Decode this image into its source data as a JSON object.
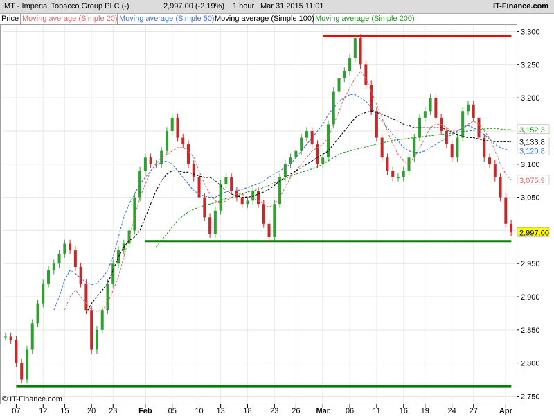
{
  "header": {
    "symbol": "IMT - Imperial Tobacco Group PLC (-)",
    "last": "2,997.00 (-2.19%)",
    "interval": "1 hour",
    "datetime": "Mar 31 2015 11:01",
    "brand": "IT-Finance.com"
  },
  "legend": [
    {
      "label": "Price",
      "color": "#000000"
    },
    {
      "label": "Moving average (Simple 20)",
      "color": "#e06666"
    },
    {
      "label": "Moving average (Simple 50)",
      "color": "#3a6fd8"
    },
    {
      "label": "Moving average (Simple 100)",
      "color": "#000000"
    },
    {
      "label": "Moving average (Simple 200)",
      "color": "#1a9a1a"
    }
  ],
  "copyright": "© IT-Finance.com",
  "chart_data": {
    "type": "line",
    "ylim": [
      2740,
      3310
    ],
    "y_ticks": [
      "2,750",
      "2,800",
      "2,850",
      "2,900",
      "2,950",
      "3,000",
      "3,050",
      "3,100",
      "3,150",
      "3,200",
      "3,250",
      "3,300"
    ],
    "y_tick_values": [
      2750,
      2800,
      2850,
      2900,
      2950,
      3000,
      3050,
      3100,
      3150,
      3200,
      3250,
      3300
    ],
    "x_ticks": [
      "07",
      "12",
      "15",
      "20",
      "23",
      "Feb",
      "05",
      "10",
      "13",
      "18",
      "23",
      "26",
      "Mar",
      "06",
      "11",
      "16",
      "19",
      "24",
      "27",
      "Apr"
    ],
    "x_tick_pos": [
      2,
      7,
      11,
      16,
      20,
      26,
      31,
      36,
      40,
      45,
      50,
      54,
      59,
      64,
      69,
      74,
      78,
      83,
      87,
      93
    ],
    "x_count": 95,
    "x_tick_major": [
      "Feb",
      "Mar",
      "Apr"
    ],
    "price": [
      2840,
      2835,
      2800,
      2775,
      2820,
      2860,
      2890,
      2920,
      2940,
      2950,
      2965,
      2980,
      2970,
      2945,
      2920,
      2880,
      2820,
      2850,
      2880,
      2920,
      2950,
      2970,
      2980,
      3000,
      3050,
      3090,
      3110,
      3100,
      3100,
      3120,
      3150,
      3170,
      3140,
      3130,
      3100,
      3080,
      3050,
      3020,
      2995,
      3030,
      3070,
      3080,
      3060,
      3050,
      3040,
      3045,
      3060,
      3040,
      3010,
      2990,
      3040,
      3080,
      3100,
      3110,
      3120,
      3140,
      3150,
      3130,
      3100,
      3110,
      3160,
      3210,
      3230,
      3240,
      3260,
      3290,
      3250,
      3220,
      3180,
      3140,
      3110,
      3090,
      3080,
      3080,
      3090,
      3110,
      3140,
      3170,
      3180,
      3200,
      3170,
      3150,
      3130,
      3110,
      3140,
      3180,
      3190,
      3170,
      3140,
      3110,
      3100,
      3080,
      3050,
      3010,
      2997
    ],
    "series": [
      {
        "name": "Moving average (Simple 20)",
        "color": "#e06666",
        "values": [
          null,
          null,
          null,
          null,
          null,
          null,
          null,
          null,
          null,
          null,
          null,
          2880,
          2900,
          2910,
          2900,
          2890,
          2880,
          2878,
          2880,
          2890,
          2910,
          2930,
          2960,
          2990,
          3020,
          3050,
          3070,
          3090,
          3100,
          3110,
          3115,
          3120,
          3125,
          3125,
          3120,
          3110,
          3090,
          3070,
          3055,
          3045,
          3040,
          3045,
          3050,
          3055,
          3055,
          3050,
          3048,
          3045,
          3040,
          3035,
          3040,
          3050,
          3065,
          3080,
          3090,
          3100,
          3110,
          3120,
          3125,
          3130,
          3140,
          3160,
          3180,
          3200,
          3215,
          3230,
          3240,
          3230,
          3210,
          3190,
          3170,
          3150,
          3130,
          3115,
          3105,
          3100,
          3110,
          3125,
          3140,
          3155,
          3160,
          3160,
          3155,
          3150,
          3150,
          3155,
          3160,
          3165,
          3160,
          3150,
          3140,
          3120,
          3100,
          3085,
          3075.9
        ]
      },
      {
        "name": "Moving average (Simple 50)",
        "color": "#3a6fd8",
        "values": [
          null,
          null,
          null,
          null,
          null,
          null,
          null,
          null,
          null,
          2880,
          2900,
          2925,
          2940,
          2935,
          2928,
          2922,
          2918,
          2920,
          2928,
          2940,
          2960,
          2990,
          3020,
          3040,
          3055,
          3070,
          3080,
          3090,
          3098,
          3103,
          3105,
          3100,
          3090,
          3080,
          3070,
          3060,
          3055,
          3052,
          3050,
          3050,
          3055,
          3058,
          3060,
          3060,
          3062,
          3065,
          3068,
          3070,
          3075,
          3080,
          3085,
          3090,
          3095,
          3100,
          3110,
          3120,
          3130,
          3140,
          3150,
          3160,
          3175,
          3185,
          3195,
          3200,
          3205,
          3205,
          3200,
          3195,
          3185,
          3175,
          3165,
          3155,
          3145,
          3135,
          3125,
          3120,
          3118,
          3118,
          3120,
          3125,
          3130,
          3135,
          3140,
          3145,
          3150,
          3155,
          3158,
          3155,
          3150,
          3145,
          3138,
          3130,
          3125,
          3122,
          3120.8
        ]
      },
      {
        "name": "Moving average (Simple 100)",
        "color": "#000000",
        "values": [
          null,
          null,
          null,
          null,
          null,
          null,
          null,
          null,
          null,
          null,
          null,
          null,
          null,
          null,
          null,
          2875,
          2890,
          2900,
          2910,
          2920,
          2940,
          2960,
          2975,
          2985,
          2990,
          3000,
          3020,
          3040,
          3060,
          3075,
          3085,
          3090,
          3090,
          3088,
          3088,
          3085,
          3082,
          3080,
          3080,
          3075,
          3068,
          3060,
          3055,
          3052,
          3050,
          3050,
          3052,
          3055,
          3058,
          3062,
          3068,
          3075,
          3080,
          3085,
          3090,
          3095,
          3100,
          3105,
          3110,
          3115,
          3120,
          3130,
          3140,
          3150,
          3160,
          3170,
          3175,
          3178,
          3180,
          3178,
          3175,
          3172,
          3168,
          3165,
          3160,
          3158,
          3155,
          3155,
          3155,
          3155,
          3155,
          3155,
          3152,
          3148,
          3145,
          3142,
          3140,
          3140,
          3138,
          3136,
          3135,
          3134,
          3134,
          3134,
          3133.8
        ]
      },
      {
        "name": "Moving average (Simple 200)",
        "color": "#1a9a1a",
        "values": [
          null,
          null,
          null,
          null,
          null,
          null,
          null,
          null,
          null,
          null,
          null,
          null,
          null,
          null,
          null,
          null,
          null,
          null,
          null,
          null,
          null,
          null,
          null,
          null,
          null,
          null,
          null,
          null,
          2975,
          2985,
          2995,
          3005,
          3015,
          3022,
          3028,
          3032,
          3035,
          3038,
          3040,
          3042,
          3045,
          3048,
          3050,
          3052,
          3055,
          3058,
          3060,
          3062,
          3065,
          3068,
          3072,
          3075,
          3078,
          3082,
          3085,
          3088,
          3090,
          3093,
          3096,
          3100,
          3105,
          3110,
          3115,
          3118,
          3120,
          3122,
          3124,
          3126,
          3128,
          3130,
          3132,
          3134,
          3136,
          3137,
          3138,
          3139,
          3140,
          3141,
          3142,
          3143,
          3144,
          3145,
          3146,
          3147,
          3148,
          3149,
          3150,
          3151,
          3152,
          3153,
          3154,
          3154,
          3153,
          3152,
          3152.3
        ]
      }
    ],
    "horizontal_lines": [
      {
        "value": 3293,
        "from": 59,
        "to": 93,
        "color": "#ff0000"
      },
      {
        "value": 2984,
        "from": 26,
        "to": 93,
        "color": "#008000"
      },
      {
        "value": 2765,
        "from": 2,
        "to": 93,
        "color": "#008000"
      }
    ],
    "last_labels": [
      {
        "text": "3,152.3",
        "value": 3152.3,
        "color": "#1a9a1a",
        "bg": "#ffffff"
      },
      {
        "text": "3,133.8",
        "value": 3133.8,
        "color": "#000000",
        "bg": "#ffffff"
      },
      {
        "text": "3,120.8",
        "value": 3120.8,
        "color": "#3a6fd8",
        "bg": "#ffffff"
      },
      {
        "text": "3,075.9",
        "value": 3075.9,
        "color": "#e06666",
        "bg": "#ffffff"
      },
      {
        "text": "2,997.00",
        "value": 2997,
        "color": "#000000",
        "bg": "#ffff00"
      }
    ],
    "grid": true
  }
}
